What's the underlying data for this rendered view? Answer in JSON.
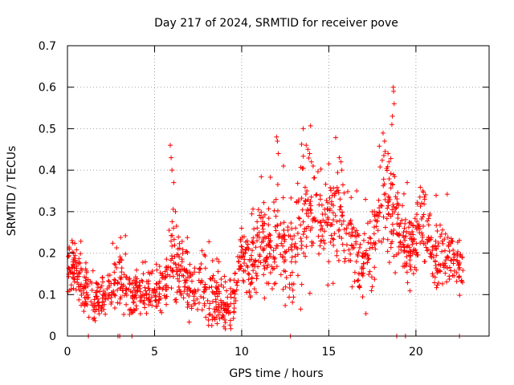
{
  "chart_data": {
    "type": "scatter",
    "title": "Day 217 of 2024, SRMTID for receiver pove",
    "xlabel": "GPS time / hours",
    "ylabel": "SRMTID / TECUs",
    "xlim": [
      0,
      24.2
    ],
    "ylim": [
      0,
      0.7
    ],
    "x_ticks": [
      0,
      5,
      10,
      15,
      20
    ],
    "y_ticks": [
      0,
      0.1,
      0.2,
      0.3,
      0.4,
      0.5,
      0.6,
      0.7
    ],
    "x_tick_labels": [
      "0",
      "5",
      "10",
      "15",
      "20"
    ],
    "y_tick_labels": [
      "0",
      "0.1",
      "0.2",
      "0.3",
      "0.4",
      "0.5",
      "0.6",
      "0.7"
    ],
    "grid": true,
    "marker": "plus",
    "color": "#ff0000",
    "series": [
      {
        "name": "SRMTID",
        "profile": [
          [
            0.0,
            0.17,
            0.03
          ],
          [
            0.5,
            0.16,
            0.035
          ],
          [
            1.0,
            0.11,
            0.03
          ],
          [
            1.5,
            0.08,
            0.025
          ],
          [
            2.0,
            0.1,
            0.025
          ],
          [
            2.5,
            0.12,
            0.03
          ],
          [
            3.0,
            0.14,
            0.04
          ],
          [
            3.5,
            0.12,
            0.035
          ],
          [
            4.0,
            0.1,
            0.025
          ],
          [
            4.5,
            0.1,
            0.025
          ],
          [
            5.0,
            0.1,
            0.025
          ],
          [
            5.5,
            0.13,
            0.035
          ],
          [
            6.0,
            0.2,
            0.07
          ],
          [
            6.5,
            0.15,
            0.04
          ],
          [
            7.0,
            0.12,
            0.035
          ],
          [
            7.5,
            0.12,
            0.04
          ],
          [
            8.0,
            0.11,
            0.04
          ],
          [
            8.5,
            0.1,
            0.04
          ],
          [
            9.0,
            0.06,
            0.025
          ],
          [
            9.5,
            0.08,
            0.03
          ],
          [
            10.0,
            0.19,
            0.03
          ],
          [
            10.5,
            0.16,
            0.04
          ],
          [
            11.0,
            0.22,
            0.05
          ],
          [
            11.5,
            0.2,
            0.05
          ],
          [
            12.0,
            0.24,
            0.06
          ],
          [
            12.5,
            0.2,
            0.05
          ],
          [
            13.0,
            0.2,
            0.06
          ],
          [
            13.5,
            0.28,
            0.08
          ],
          [
            14.0,
            0.33,
            0.07
          ],
          [
            14.5,
            0.26,
            0.05
          ],
          [
            15.0,
            0.29,
            0.06
          ],
          [
            15.5,
            0.3,
            0.06
          ],
          [
            16.0,
            0.24,
            0.05
          ],
          [
            16.5,
            0.22,
            0.05
          ],
          [
            17.0,
            0.18,
            0.04
          ],
          [
            17.5,
            0.21,
            0.05
          ],
          [
            18.0,
            0.33,
            0.06
          ],
          [
            18.5,
            0.32,
            0.07
          ],
          [
            19.0,
            0.25,
            0.06
          ],
          [
            19.5,
            0.21,
            0.04
          ],
          [
            20.0,
            0.25,
            0.05
          ],
          [
            20.5,
            0.26,
            0.05
          ],
          [
            21.0,
            0.19,
            0.04
          ],
          [
            21.5,
            0.18,
            0.04
          ],
          [
            22.0,
            0.2,
            0.04
          ],
          [
            22.5,
            0.17,
            0.03
          ],
          [
            22.7,
            0.16,
            0.03
          ]
        ],
        "peaks": [
          [
            5.9,
            0.46
          ],
          [
            5.95,
            0.43
          ],
          [
            6.0,
            0.4
          ],
          [
            6.1,
            0.37
          ],
          [
            6.2,
            0.3
          ],
          [
            12.0,
            0.48
          ],
          [
            12.05,
            0.47
          ],
          [
            12.1,
            0.44
          ],
          [
            13.7,
            0.46
          ],
          [
            13.8,
            0.45
          ],
          [
            13.9,
            0.44
          ],
          [
            14.0,
            0.42
          ],
          [
            14.1,
            0.41
          ],
          [
            15.6,
            0.43
          ],
          [
            15.7,
            0.42
          ],
          [
            15.75,
            0.4
          ],
          [
            18.2,
            0.47
          ],
          [
            18.4,
            0.44
          ],
          [
            18.7,
            0.6
          ],
          [
            18.72,
            0.59
          ],
          [
            18.75,
            0.56
          ],
          [
            18.65,
            0.53
          ],
          [
            18.62,
            0.51
          ],
          [
            20.4,
            0.35
          ],
          [
            20.5,
            0.33
          ],
          [
            19.5,
            0.37
          ],
          [
            12.4,
            0.41
          ],
          [
            16.6,
            0.35
          ]
        ],
        "zeros": [
          1.2,
          2.9,
          3.0,
          3.7,
          12.8,
          18.9,
          19.4,
          22.5
        ]
      }
    ]
  }
}
